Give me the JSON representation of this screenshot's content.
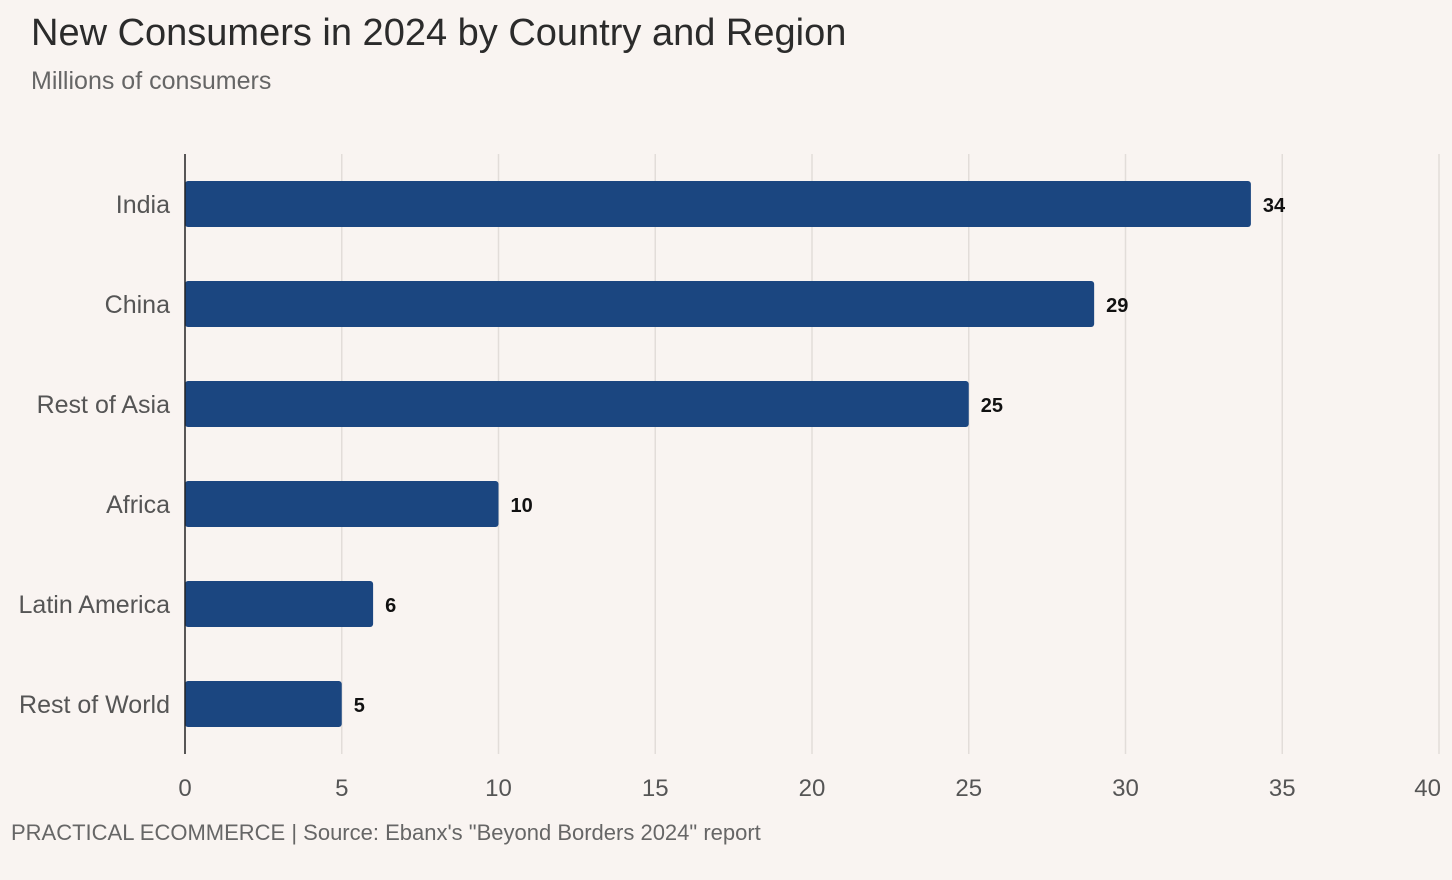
{
  "chart_data": {
    "type": "bar",
    "orientation": "horizontal",
    "title": "New Consumers in 2024 by Country and Region",
    "subtitle": "Millions of consumers",
    "categories": [
      "India",
      "China",
      "Rest of Asia",
      "Africa",
      "Latin America",
      "Rest of World"
    ],
    "values": [
      34,
      29,
      25,
      10,
      6,
      5
    ],
    "xlabel": "",
    "ylabel": "",
    "xlim": [
      0,
      40
    ],
    "x_ticks": [
      0,
      5,
      10,
      15,
      20,
      25,
      30,
      35,
      40
    ],
    "grid": true,
    "data_labels": true,
    "bar_color": "#1b4680"
  },
  "footer": {
    "source_text": "PRACTICAL ECOMMERCE | Source: Ebanx's \"Beyond Borders 2024\" report"
  },
  "colors": {
    "background": "#f9f4f1",
    "gridline": "#e2ddd9",
    "axis": "#222222"
  }
}
